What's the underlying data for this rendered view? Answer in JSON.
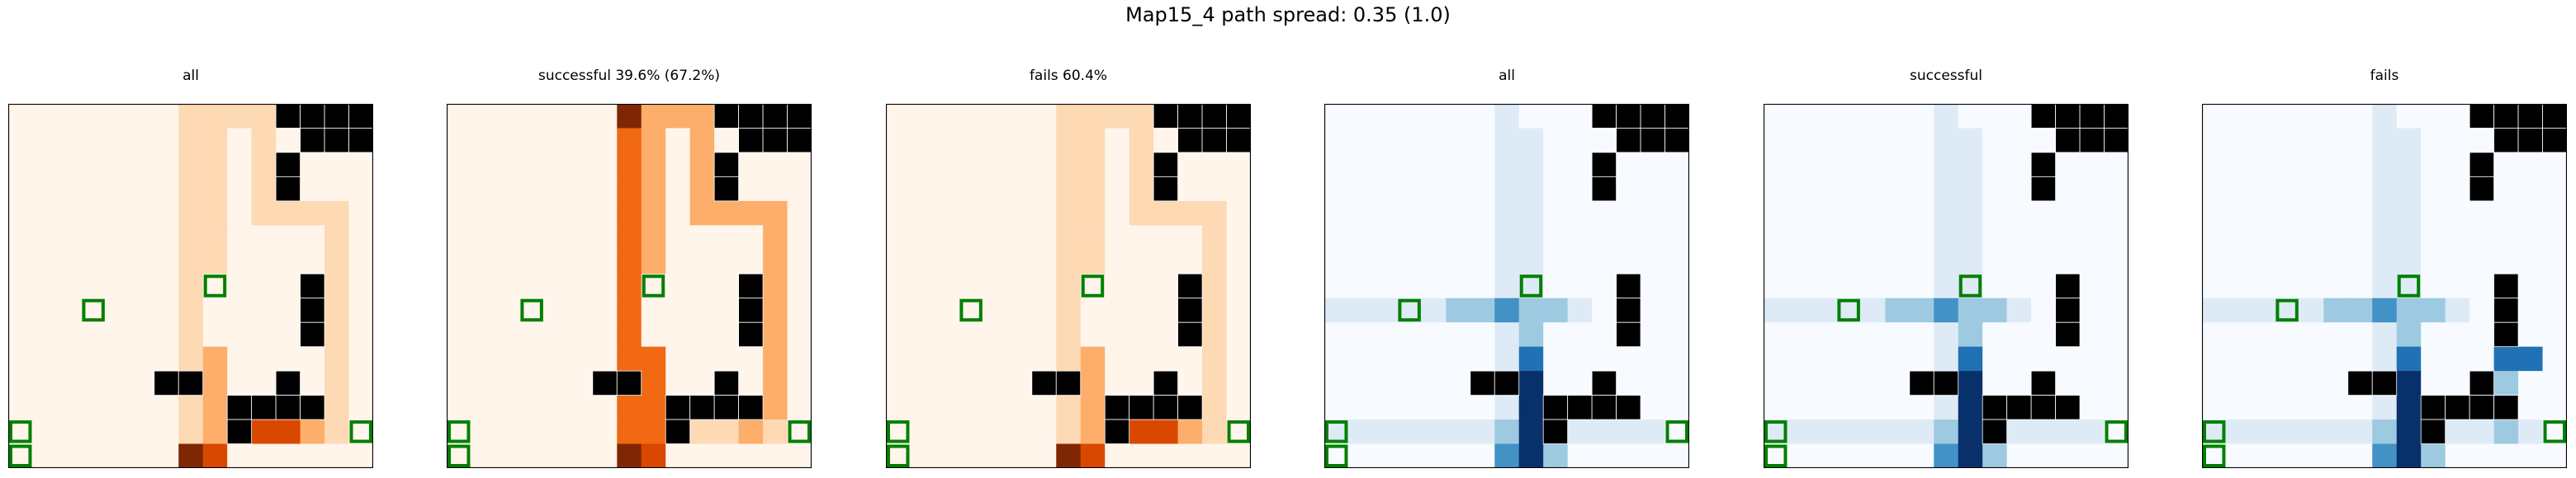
{
  "figure": {
    "title": "Map15_4 path spread: 0.35 (1.0)"
  },
  "chart_data": [
    {
      "type": "heatmap",
      "title": "all",
      "colormap": "Oranges",
      "grid": [
        15,
        15
      ]
    },
    {
      "type": "heatmap",
      "title": "successful 39.6% (67.2%)",
      "colormap": "Oranges",
      "grid": [
        15,
        15
      ]
    },
    {
      "type": "heatmap",
      "title": "fails 60.4%",
      "colormap": "Oranges",
      "grid": [
        15,
        15
      ]
    },
    {
      "type": "heatmap",
      "title": "all",
      "colormap": "Blues",
      "grid": [
        15,
        15
      ]
    },
    {
      "type": "heatmap",
      "title": "successful",
      "colormap": "Blues",
      "grid": [
        15,
        15
      ]
    },
    {
      "type": "heatmap",
      "title": "fails",
      "colormap": "Blues",
      "grid": [
        15,
        15
      ]
    }
  ],
  "colors": {
    "oranges": [
      "#fff5eb",
      "#fdd9b4",
      "#fdae6b",
      "#f16913",
      "#d94801",
      "#7f2704"
    ],
    "blues": [
      "#f7fbff",
      "#deebf7",
      "#9ecae1",
      "#4292c6",
      "#2171b5",
      "#08306b"
    ],
    "wall": "#000000",
    "marker": "#008000"
  }
}
